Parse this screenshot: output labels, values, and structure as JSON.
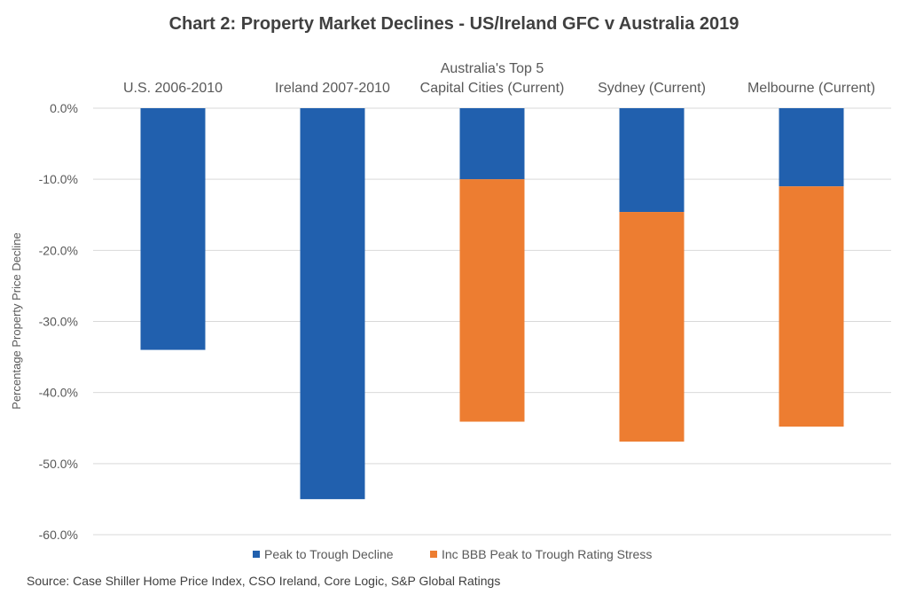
{
  "chart_data": {
    "type": "bar",
    "stacked": true,
    "title": "Chart 2: Property Market Declines - US/Ireland GFC v Australia 2019",
    "ylabel": "Percentage Property Price Decline",
    "xlabel": "",
    "categories": [
      [
        "U.S. 2006-2010"
      ],
      [
        "Ireland 2007-2010"
      ],
      [
        "Australia's Top 5",
        "Capital Cities (Current)"
      ],
      [
        "Sydney (Current)"
      ],
      [
        "Melbourne (Current)"
      ]
    ],
    "series": [
      {
        "name": "Peak to Trough Decline",
        "color": "#2160AE",
        "values": [
          -34.0,
          -55.0,
          -10.0,
          -14.6,
          -11.0
        ]
      },
      {
        "name": "Inc BBB Peak to Trough Rating Stress",
        "color": "#ED7D31",
        "values": [
          null,
          null,
          -34.1,
          -32.3,
          -33.8
        ]
      }
    ],
    "ylim": [
      -60,
      0
    ],
    "yticks": [
      "0.0%",
      "-10.0%",
      "-20.0%",
      "-30.0%",
      "-40.0%",
      "-50.0%",
      "-60.0%"
    ],
    "ytick_values": [
      0,
      -10,
      -20,
      -30,
      -40,
      -50,
      -60
    ],
    "grid": true,
    "category_labels_position": "top",
    "legend_position": "bottom",
    "source": "Source: Case Shiller Home Price Index, CSO Ireland, Core Logic, S&P Global Ratings"
  }
}
